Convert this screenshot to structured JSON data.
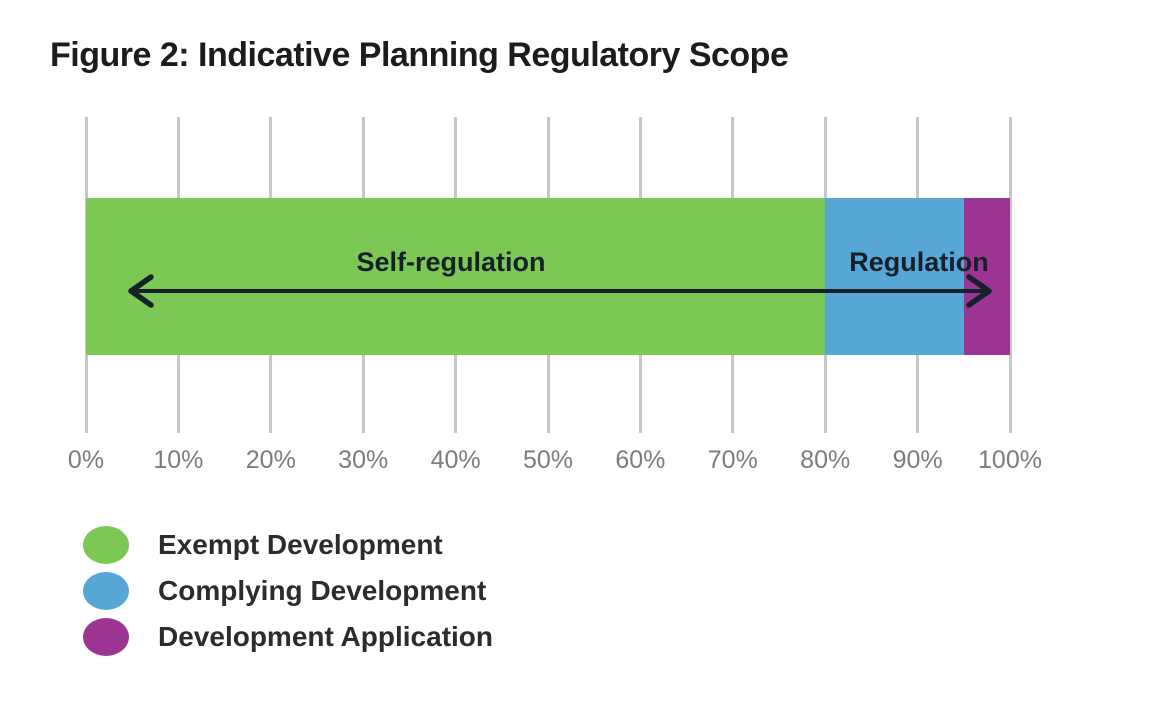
{
  "figure": {
    "title": "Figure 2: Indicative Planning Regulatory Scope"
  },
  "chart_data": {
    "type": "bar",
    "variant": "horizontal-stacked-percentage-scale",
    "title": "Figure 2: Indicative Planning Regulatory Scope",
    "xlim": [
      0,
      100
    ],
    "x_ticks": [
      "0%",
      "10%",
      "20%",
      "30%",
      "40%",
      "50%",
      "60%",
      "70%",
      "80%",
      "90%",
      "100%"
    ],
    "grid": "vertical-gridlines-on",
    "segments": [
      {
        "label": "Exempt Development",
        "start_pct": 0,
        "end_pct": 80,
        "value_pct": 80,
        "color": "#7cc854"
      },
      {
        "label": "Complying Development",
        "start_pct": 80,
        "end_pct": 95,
        "value_pct": 15,
        "color": "#57a7d6"
      },
      {
        "label": "Development Application",
        "start_pct": 95,
        "end_pct": 100,
        "value_pct": 5,
        "color": "#9c3494"
      }
    ],
    "annotations": [
      {
        "text": "Self-regulation",
        "arrow_direction": "left",
        "center_pct": 39.5
      },
      {
        "text": "Regulation",
        "arrow_direction": "right",
        "center_pct": 90
      }
    ],
    "legend_position": "bottom-left"
  },
  "annotations": {
    "self_regulation": "Self-regulation",
    "regulation": "Regulation"
  },
  "legend": {
    "items": [
      {
        "label": "Exempt Development",
        "color": "#7cc854"
      },
      {
        "label": "Complying Development",
        "color": "#57a7d6"
      },
      {
        "label": "Development Application",
        "color": "#9c3494"
      }
    ]
  },
  "colors": {
    "exempt_green": "#7cc854",
    "complying_blue": "#57a7d6",
    "application_purple": "#9c3494",
    "gridline": "#c7c7c7",
    "tick_text": "#7c7c7c",
    "title_text": "#1c1c1c",
    "legend_text": "#2c2c2c",
    "arrow_ink": "#162029"
  }
}
